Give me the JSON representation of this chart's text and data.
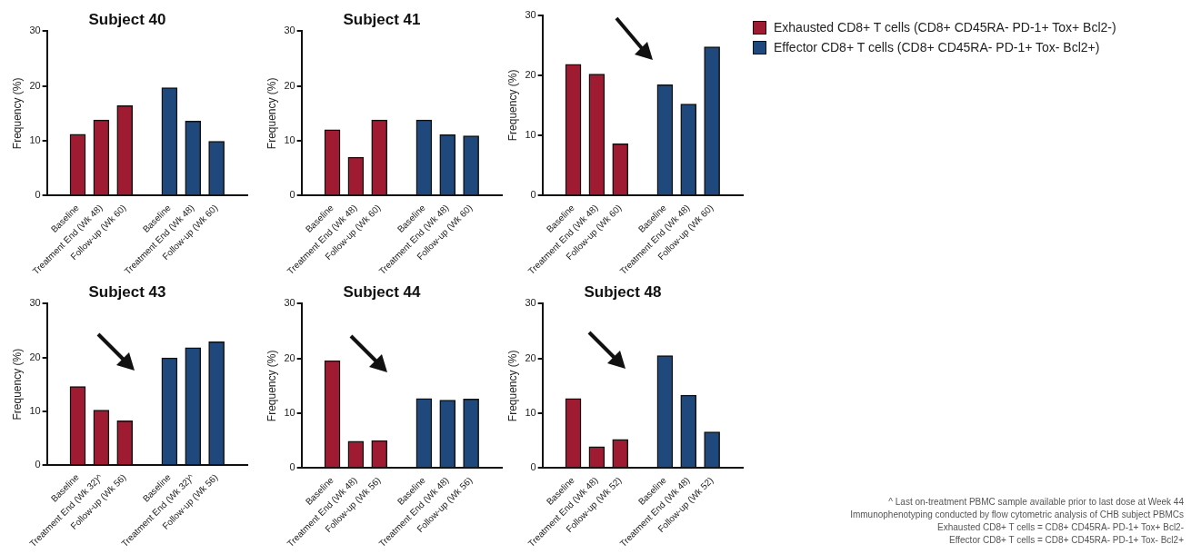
{
  "chart_data": [
    {
      "type": "bar",
      "title": "Subject 40",
      "ylabel": "Frequency (%)",
      "categories": [
        "Baseline",
        "Treatment End (Wk 48)",
        "Follow-up (Wk 60)",
        "Baseline",
        "Treatment End (Wk 48)",
        "Follow-up (Wk 60)"
      ],
      "ylim": [
        0,
        30
      ],
      "yticks": [
        0,
        10,
        20,
        30
      ],
      "grid": false,
      "legend": "right",
      "series": [
        {
          "name": "Exhausted CD8+ T cells (CD8+ CD45RA- PD-1+ Tox+ Bcl2-)",
          "color": "#9e1b32",
          "values": [
            11.2,
            13.8,
            16.4,
            null,
            null,
            null
          ]
        },
        {
          "name": "Effector CD8+ T cells (CD8+ CD45RA- PD-1+ Tox- Bcl2+)",
          "color": "#1f497d",
          "values": [
            null,
            null,
            null,
            19.7,
            13.6,
            9.9
          ]
        }
      ]
    },
    {
      "type": "bar",
      "title": "Subject 41",
      "ylabel": "Frequency (%)",
      "categories": [
        "Baseline",
        "Treatment End (Wk 48)",
        "Follow-up (Wk 60)",
        "Baseline",
        "Treatment End (Wk 48)",
        "Follow-up (Wk 60)"
      ],
      "ylim": [
        0,
        30
      ],
      "yticks": [
        0,
        10,
        20,
        30
      ],
      "grid": false,
      "series": [
        {
          "color": "#9e1b32",
          "values": [
            12.0,
            7.0,
            13.8,
            null,
            null,
            null
          ]
        },
        {
          "color": "#1f497d",
          "values": [
            null,
            null,
            null,
            13.8,
            11.1,
            10.9
          ]
        }
      ]
    },
    {
      "type": "bar",
      "ylabel": "Frequency (%)",
      "categories": [
        "Baseline",
        "Treatment End (Wk 48)",
        "Follow-up (Wk 60)",
        "Baseline",
        "Treatment End (Wk 48)",
        "Follow-up (Wk 60)"
      ],
      "ylim": [
        0,
        30
      ],
      "yticks": [
        0,
        10,
        20,
        30
      ],
      "grid": false,
      "series": [
        {
          "color": "#9e1b32",
          "values": [
            21.8,
            20.2,
            8.6,
            null,
            null,
            null
          ]
        },
        {
          "color": "#1f497d",
          "values": [
            null,
            null,
            null,
            18.4,
            15.2,
            24.7
          ]
        }
      ]
    },
    {
      "type": "bar",
      "title": "Subject 43",
      "ylabel": "Frequency (%)",
      "categories": [
        "Baseline",
        "Treatment End (Wk 32)^",
        "Follow-up (Wk 56)",
        "Baseline",
        "Treatment End (Wk 32)^",
        "Follow-up (Wk 56)"
      ],
      "ylim": [
        0,
        30
      ],
      "yticks": [
        0,
        10,
        20,
        30
      ],
      "grid": false,
      "series": [
        {
          "color": "#9e1b32",
          "values": [
            14.6,
            10.2,
            8.2,
            null,
            null,
            null
          ]
        },
        {
          "color": "#1f497d",
          "values": [
            null,
            null,
            null,
            19.9,
            21.8,
            22.9
          ]
        }
      ]
    },
    {
      "type": "bar",
      "title": "Subject 44",
      "ylabel": "Frequency (%)",
      "categories": [
        "Baseline",
        "Treatment End (Wk 48)",
        "Follow-up (Wk 56)",
        "Baseline",
        "Treatment End (Wk 48)",
        "Follow-up (Wk 56)"
      ],
      "ylim": [
        0,
        30
      ],
      "yticks": [
        0,
        10,
        20,
        30
      ],
      "grid": false,
      "series": [
        {
          "color": "#9e1b32",
          "values": [
            19.6,
            4.9,
            5.0,
            null,
            null,
            null
          ]
        },
        {
          "color": "#1f497d",
          "values": [
            null,
            null,
            null,
            12.7,
            12.4,
            12.6
          ]
        }
      ]
    },
    {
      "type": "bar",
      "title": "Subject 48",
      "ylabel": "Frequency (%)",
      "categories": [
        "Baseline",
        "Treatment End (Wk 48)",
        "Follow-up (Wk 52)",
        "Baseline",
        "Treatment End (Wk 48)",
        "Follow-up (Wk 52)"
      ],
      "ylim": [
        0,
        30
      ],
      "yticks": [
        0,
        10,
        20,
        30
      ],
      "grid": false,
      "series": [
        {
          "color": "#9e1b32",
          "values": [
            12.7,
            3.9,
            5.2,
            null,
            null,
            null
          ]
        },
        {
          "color": "#1f497d",
          "values": [
            null,
            null,
            null,
            20.5,
            13.3,
            6.6
          ]
        }
      ],
      "annotations": [
        "^ Last on-treatment PBMC sample available prior to last dose at Week 44",
        "Immunophenotyping conducted by flow cytometric analysis of CHB subject PBMCs",
        "Exhausted CD8+ T cells = CD8+ CD45RA- PD-1+ Tox+ Bcl2-",
        "Effector CD8+ T cells = CD8+ CD45RA- PD-1+ Tox- Bcl2+"
      ]
    }
  ]
}
